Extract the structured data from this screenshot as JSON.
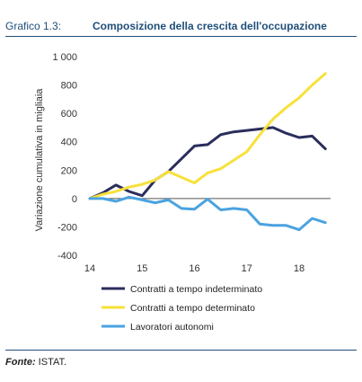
{
  "figure": {
    "number": "Grafico 1.3:",
    "title": "Composizione della crescita dell'occupazione"
  },
  "source": {
    "label": "Fonte:",
    "text": "ISTAT."
  },
  "chart_data": {
    "type": "line",
    "ylabel": "Variazione cumulativa  in migliaia",
    "ylim": [
      -400,
      1000
    ],
    "yticks": [
      "-400",
      "-200",
      "0",
      "200",
      "400",
      "600",
      "800",
      "1 000"
    ],
    "xlim": [
      14,
      18.6
    ],
    "xticks": [
      "14",
      "15",
      "16",
      "17",
      "18"
    ],
    "legend_position": "bottom",
    "series": [
      {
        "name": "Contratti a tempo indeterminato",
        "color": "#2b2d5c",
        "x": [
          14,
          14.25,
          14.5,
          14.75,
          15,
          15.25,
          15.5,
          15.75,
          16,
          16.25,
          16.5,
          16.75,
          17,
          17.25,
          17.5,
          17.75,
          18,
          18.25,
          18.5
        ],
        "values": [
          0,
          40,
          95,
          50,
          20,
          130,
          190,
          280,
          370,
          380,
          450,
          470,
          480,
          490,
          500,
          460,
          430,
          440,
          350
        ]
      },
      {
        "name": "Contratti a tempo determinato",
        "color": "#f7e13a",
        "x": [
          14,
          14.25,
          14.5,
          14.75,
          15,
          15.25,
          15.5,
          15.75,
          16,
          16.25,
          16.5,
          16.75,
          17,
          17.25,
          17.5,
          17.75,
          18,
          18.25,
          18.5
        ],
        "values": [
          0,
          30,
          50,
          80,
          100,
          130,
          190,
          150,
          110,
          180,
          210,
          270,
          330,
          450,
          560,
          640,
          710,
          800,
          880
        ]
      },
      {
        "name": "Lavoratori autonomi",
        "color": "#4aa3e0",
        "x": [
          14,
          14.25,
          14.5,
          14.75,
          15,
          15.25,
          15.5,
          15.75,
          16,
          16.25,
          16.5,
          16.75,
          17,
          17.25,
          17.5,
          17.75,
          18,
          18.25,
          18.5
        ],
        "values": [
          0,
          0,
          -20,
          10,
          -10,
          -30,
          -10,
          -70,
          -75,
          -5,
          -80,
          -70,
          -80,
          -180,
          -190,
          -190,
          -220,
          -140,
          -170
        ]
      }
    ]
  }
}
